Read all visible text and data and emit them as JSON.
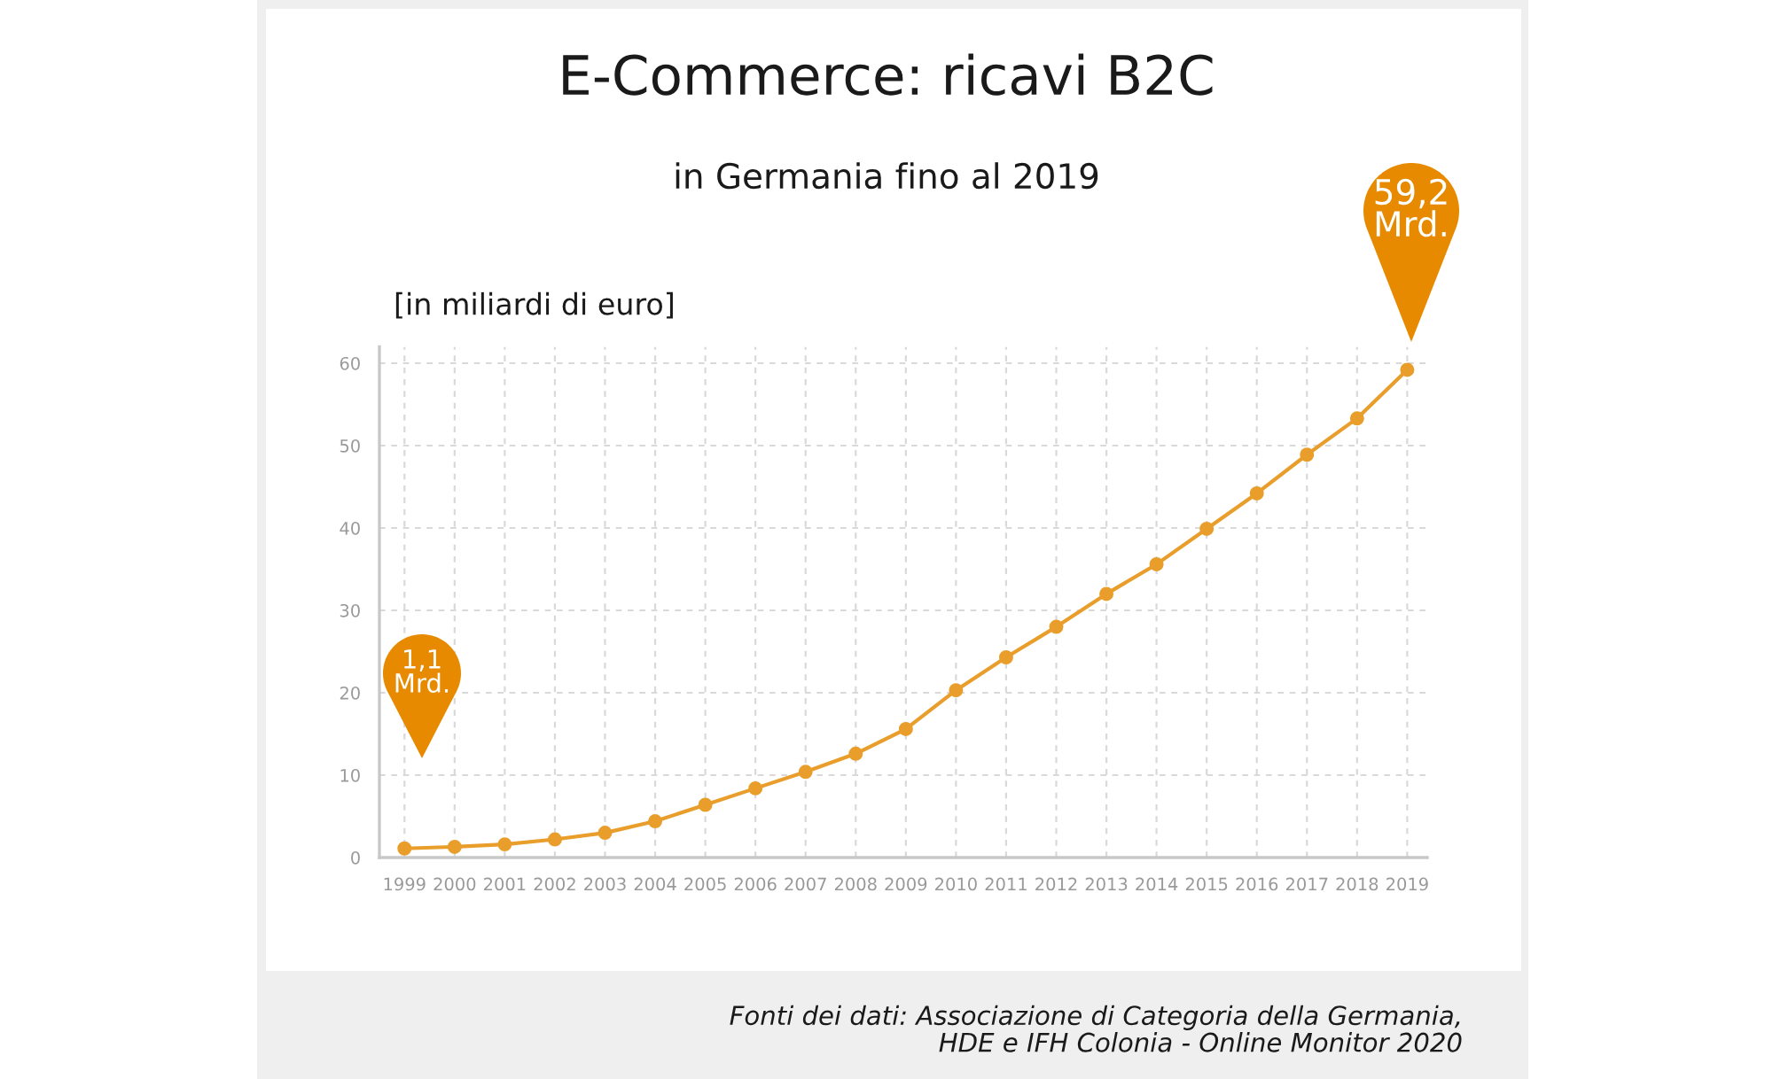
{
  "chart_data": {
    "type": "line",
    "title": "E-Commerce: ricavi B2C",
    "subtitle": "in Germania fino al 2019",
    "ylabel": "[in miliardi di euro]",
    "x": [
      1999,
      2000,
      2001,
      2002,
      2003,
      2004,
      2005,
      2006,
      2007,
      2008,
      2009,
      2010,
      2011,
      2012,
      2013,
      2014,
      2015,
      2016,
      2017,
      2018,
      2019
    ],
    "series": [
      {
        "color": "#e99e2c",
        "values": [
          1.1,
          1.3,
          1.6,
          2.2,
          3.0,
          4.4,
          6.4,
          8.4,
          10.4,
          12.6,
          15.6,
          20.3,
          24.3,
          28.0,
          32.0,
          35.6,
          39.9,
          44.2,
          48.9,
          53.3,
          59.2
        ]
      }
    ],
    "xlim": [
      1998.5,
      2019.4
    ],
    "xticks": [
      1999,
      2000,
      2001,
      2002,
      2003,
      2004,
      2005,
      2006,
      2007,
      2008,
      2009,
      2010,
      2011,
      2012,
      2013,
      2014,
      2015,
      2016,
      2017,
      2018,
      2019
    ],
    "ylim": [
      0,
      62
    ],
    "yticks": [
      0,
      10,
      20,
      30,
      40,
      50,
      60
    ],
    "grid": true,
    "marker": "circle",
    "line_style": "solid",
    "annotations": [
      "1,1\nMrd.",
      "59,2\nMrd.",
      "Fonti dei dati: Associazione di Categoria della Germania,\nHDE e IFH Colonia - Online Monitor 2020"
    ]
  }
}
